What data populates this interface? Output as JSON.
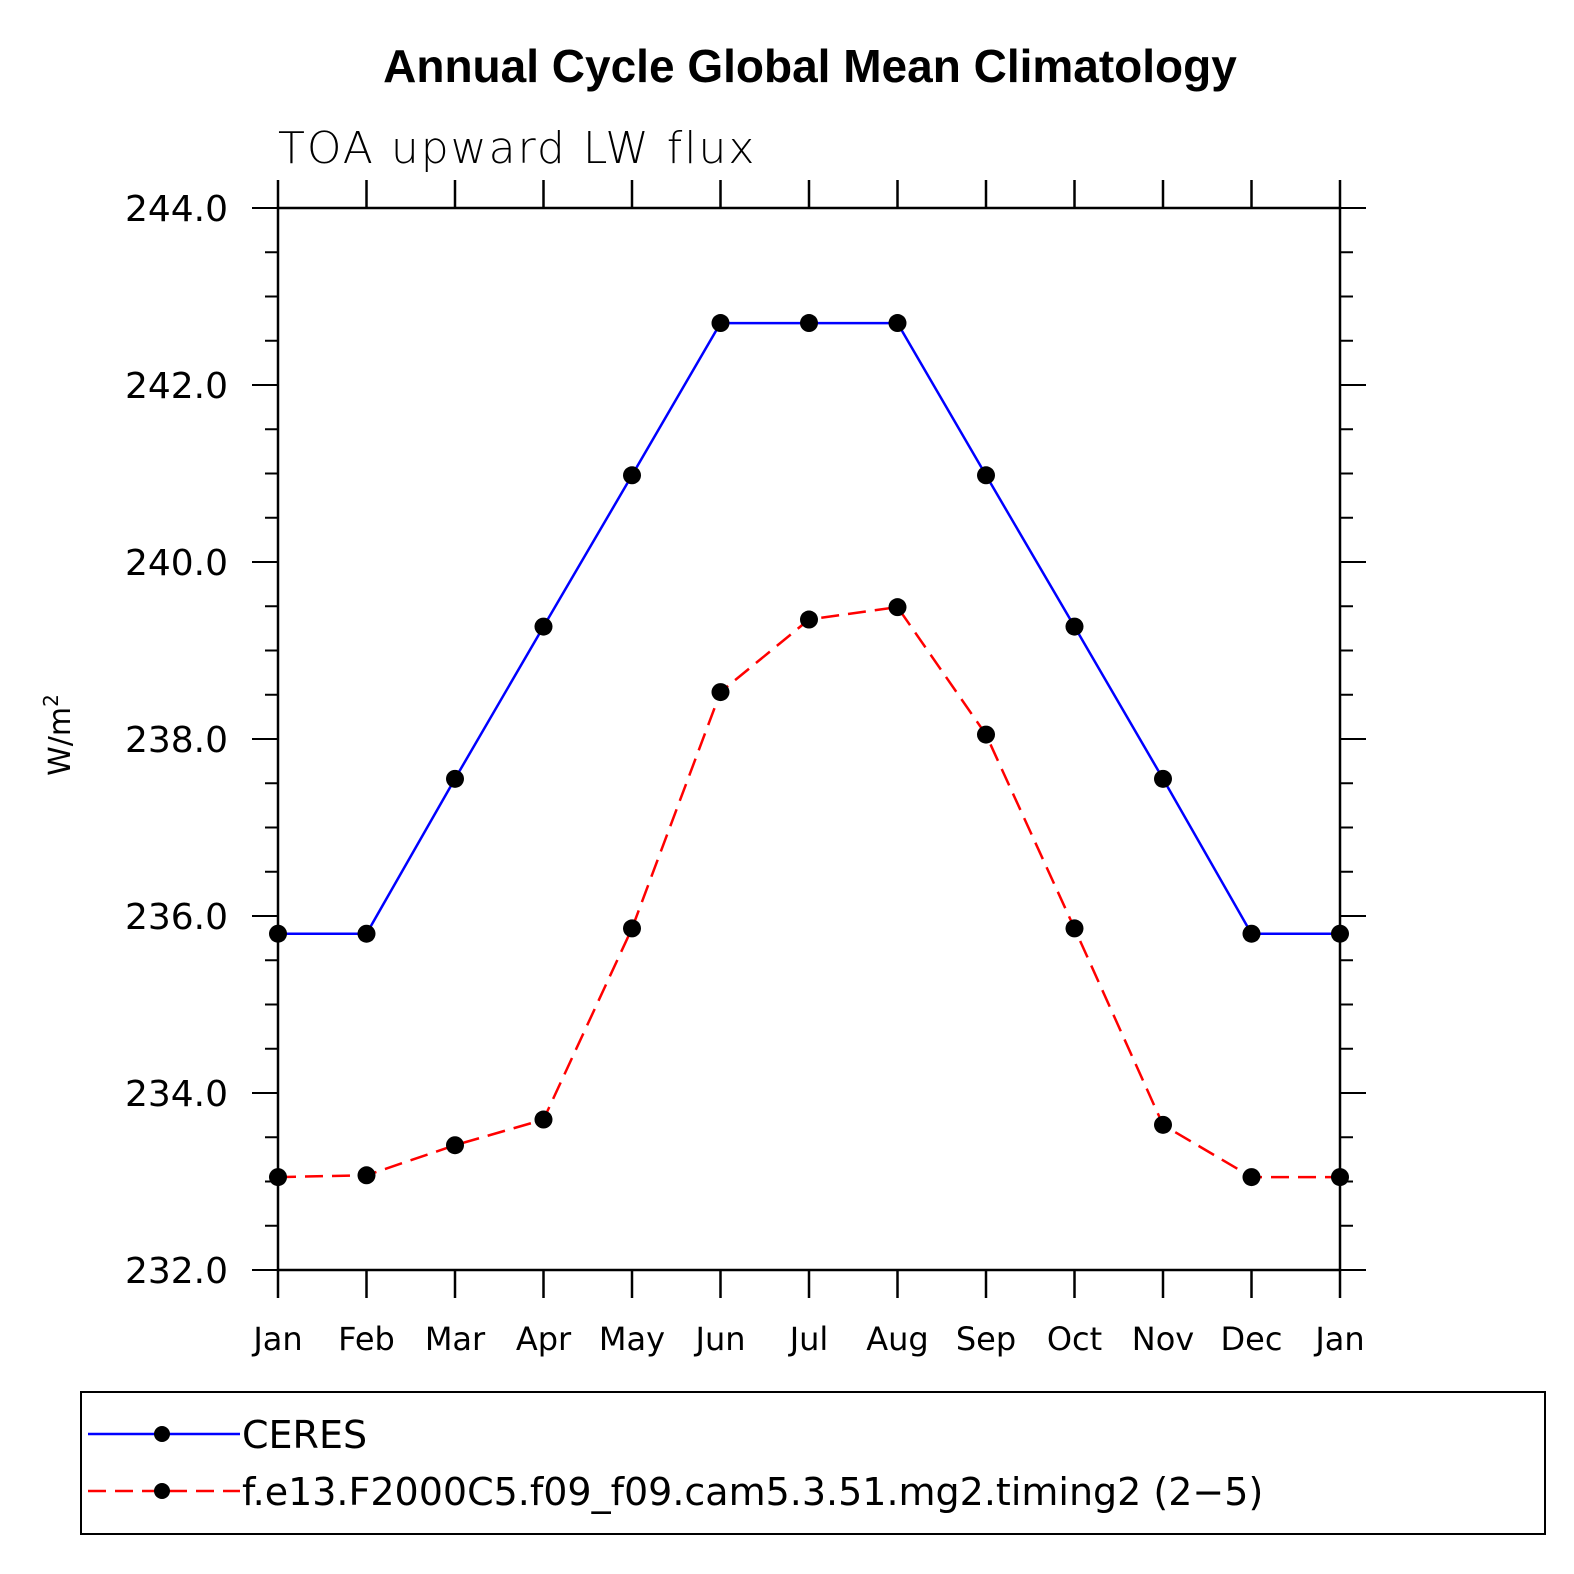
{
  "chart_data": {
    "type": "line",
    "title": "Annual Cycle Global Mean Climatology",
    "subtitle": "TOA upward LW flux",
    "ylabel": "W/m",
    "ylabel_sup": "2",
    "categories": [
      "Jan",
      "Feb",
      "Mar",
      "Apr",
      "May",
      "Jun",
      "Jul",
      "Aug",
      "Sep",
      "Oct",
      "Nov",
      "Dec",
      "Jan"
    ],
    "ylim": [
      232.0,
      244.0
    ],
    "yticks": [
      "232.0",
      "234.0",
      "236.0",
      "238.0",
      "240.0",
      "242.0",
      "244.0"
    ],
    "series": [
      {
        "name": "CERES",
        "color": "#0000ff",
        "dash": "solid",
        "values": [
          235.8,
          235.8,
          237.55,
          239.27,
          240.98,
          242.7,
          242.7,
          242.7,
          240.98,
          239.27,
          237.55,
          235.8,
          235.8
        ]
      },
      {
        "name": "f.e13.F2000C5.f09_f09.cam5.3.51.mg2.timing2 (2−5)",
        "color": "#ff0000",
        "dash": "dashed",
        "values": [
          233.05,
          233.07,
          233.41,
          233.7,
          235.86,
          238.53,
          239.35,
          239.49,
          238.05,
          235.86,
          233.64,
          233.05,
          233.05
        ]
      }
    ],
    "legend_position": "bottom"
  }
}
